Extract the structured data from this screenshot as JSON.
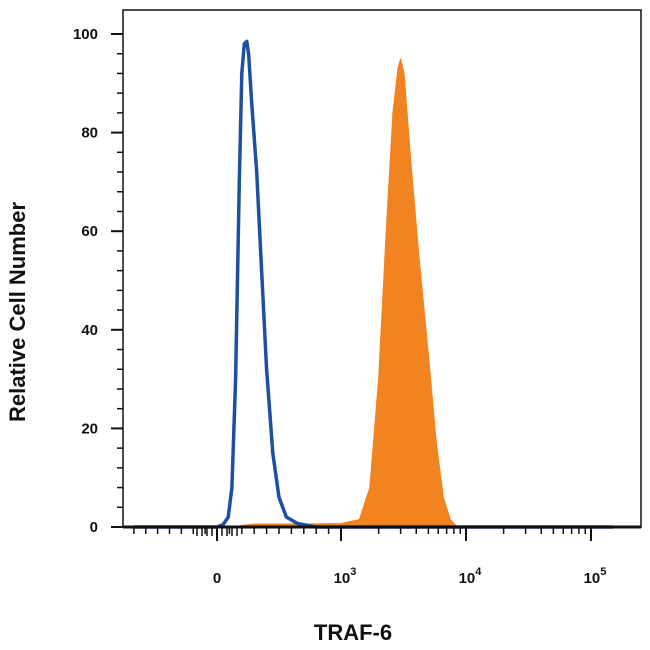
{
  "chart_data": {
    "type": "area",
    "xlabel": "TRAF-6",
    "ylabel": "Relative Cell Number",
    "x_scale": "biexponential",
    "xlim": [
      -800,
      150000
    ],
    "ylim": [
      0,
      100
    ],
    "grid": false,
    "legend": "none",
    "y_ticks": [
      0,
      20,
      40,
      60,
      80,
      100
    ],
    "y_tick_labels": [
      "0",
      "20",
      "40",
      "60",
      "80",
      "100"
    ],
    "x_ticks": [
      0,
      1000,
      10000,
      100000
    ],
    "x_tick_labels": [
      {
        "base": "0",
        "exp": ""
      },
      {
        "base": "10",
        "exp": "3"
      },
      {
        "base": "10",
        "exp": "4"
      },
      {
        "base": "10",
        "exp": "5"
      }
    ],
    "series": [
      {
        "style": "outline",
        "color": "#1f4fa0",
        "points": [
          [
            -700,
            0
          ],
          [
            0,
            0
          ],
          [
            50,
            0.5
          ],
          [
            90,
            2
          ],
          [
            120,
            8
          ],
          [
            150,
            30
          ],
          [
            180,
            70
          ],
          [
            200,
            92
          ],
          [
            220,
            98
          ],
          [
            240,
            98.5
          ],
          [
            255,
            96
          ],
          [
            280,
            86
          ],
          [
            320,
            72
          ],
          [
            360,
            52
          ],
          [
            400,
            32
          ],
          [
            450,
            15
          ],
          [
            500,
            6
          ],
          [
            560,
            2
          ],
          [
            650,
            0.7
          ],
          [
            800,
            0
          ],
          [
            150000,
            0
          ]
        ]
      },
      {
        "style": "filled",
        "color": "#f28321",
        "points": [
          [
            -700,
            0
          ],
          [
            100,
            0
          ],
          [
            300,
            0.6
          ],
          [
            700,
            0.6
          ],
          [
            1000,
            0.7
          ],
          [
            1400,
            1.5
          ],
          [
            1700,
            8
          ],
          [
            2000,
            30
          ],
          [
            2300,
            60
          ],
          [
            2600,
            84
          ],
          [
            2850,
            93
          ],
          [
            3000,
            95
          ],
          [
            3200,
            92
          ],
          [
            3600,
            75
          ],
          [
            4200,
            55
          ],
          [
            5000,
            35
          ],
          [
            5800,
            17
          ],
          [
            6600,
            6
          ],
          [
            7500,
            1.5
          ],
          [
            8500,
            0
          ],
          [
            150000,
            0
          ]
        ]
      }
    ]
  }
}
